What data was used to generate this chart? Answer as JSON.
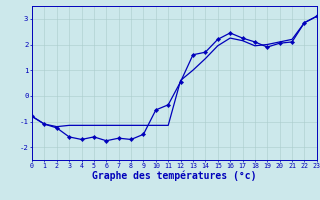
{
  "xlabel": "Graphe des températures (°c)",
  "bg_color": "#cce8eb",
  "line_color": "#0000bb",
  "grid_color": "#aacccc",
  "x_values": [
    0,
    1,
    2,
    3,
    4,
    5,
    6,
    7,
    8,
    9,
    10,
    11,
    12,
    13,
    14,
    15,
    16,
    17,
    18,
    19,
    20,
    21,
    22,
    23
  ],
  "line1_y": [
    -0.8,
    -1.1,
    -1.25,
    -1.6,
    -1.7,
    -1.6,
    -1.75,
    -1.65,
    -1.7,
    -1.5,
    -0.55,
    -0.35,
    0.55,
    1.6,
    1.7,
    2.2,
    2.45,
    2.25,
    2.1,
    1.9,
    2.05,
    2.1,
    2.85,
    3.1
  ],
  "line2_y": [
    -0.8,
    -1.1,
    -1.2,
    -1.15,
    -1.15,
    -1.15,
    -1.15,
    -1.15,
    -1.15,
    -1.15,
    -1.15,
    -1.15,
    0.6,
    1.0,
    1.45,
    1.95,
    2.25,
    2.15,
    1.95,
    2.0,
    2.1,
    2.2,
    2.85,
    3.1
  ],
  "xlim": [
    0,
    23
  ],
  "ylim": [
    -2.5,
    3.5
  ],
  "yticks": [
    -2,
    -1,
    0,
    1,
    2,
    3
  ],
  "xticks": [
    0,
    1,
    2,
    3,
    4,
    5,
    6,
    7,
    8,
    9,
    10,
    11,
    12,
    13,
    14,
    15,
    16,
    17,
    18,
    19,
    20,
    21,
    22,
    23
  ],
  "axis_color": "#0000bb",
  "tick_fontsize": 4.8,
  "label_fontsize": 7.0,
  "markersize": 2.2,
  "linewidth": 0.9
}
